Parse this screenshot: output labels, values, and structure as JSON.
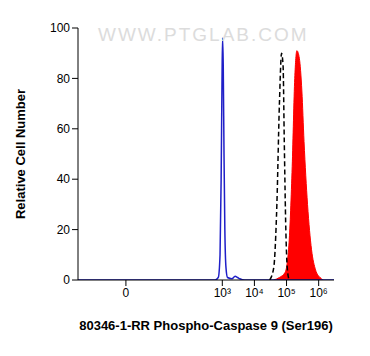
{
  "chart_data": {
    "type": "histogram",
    "annotation": "WWW.PTGLAB.COM",
    "xlabel": "80346-1-RR Phospho-Caspase 9 (Ser196)",
    "ylabel": "Relative Cell Number",
    "log": "x",
    "xlim": [
      -30,
      3000000
    ],
    "xticks": [
      0,
      {
        "value": 1000,
        "label": "10³"
      },
      {
        "value": 10000,
        "label": "10⁴"
      },
      {
        "value": 100000,
        "label": "10⁵"
      },
      {
        "value": 1000000,
        "label": "10⁶"
      }
    ],
    "ylim": [
      0,
      100
    ],
    "yticks": [
      0,
      20,
      40,
      60,
      80,
      100
    ],
    "series": [
      {
        "type": "line",
        "color": "#1f1fc8",
        "line_style": "solid",
        "x": [
          -30,
          600,
          750,
          850,
          920,
          980,
          1020,
          1070,
          1130,
          1200,
          1300,
          1450,
          2000,
          2500,
          3000,
          3500,
          5000,
          3000000
        ],
        "values": [
          0,
          0,
          1,
          10,
          40,
          80,
          96,
          85,
          50,
          20,
          5,
          1,
          0.5,
          1.5,
          1,
          0.5,
          0,
          0
        ]
      },
      {
        "type": "line",
        "color": "#000000",
        "line_style": "dashed",
        "x": [
          30000,
          40000,
          50000,
          60000,
          70000,
          78000,
          85000,
          95000,
          105000,
          120000
        ],
        "values": [
          0,
          5,
          30,
          70,
          90,
          85,
          55,
          20,
          5,
          0
        ]
      },
      {
        "type": "area",
        "color": "#ff0000",
        "line_style": "solid",
        "x": [
          40000,
          60000,
          90000,
          120000,
          150000,
          180000,
          210000,
          250000,
          300000,
          350000,
          450000,
          600000,
          800000,
          1100000,
          1400000
        ],
        "values": [
          0,
          1,
          3,
          15,
          45,
          80,
          91,
          88,
          75,
          55,
          30,
          12,
          4,
          1,
          0
        ]
      }
    ]
  }
}
